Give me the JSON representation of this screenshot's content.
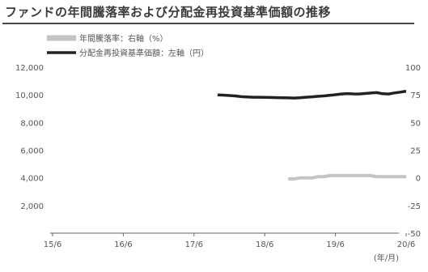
{
  "chart_data": {
    "type": "line",
    "title": "ファンドの年間騰落率および分配金再投資基準価額の推移",
    "x_tick_labels": [
      "15/6",
      "16/6",
      "17/6",
      "18/6",
      "19/6",
      "20/6"
    ],
    "x_unit": "(年/月)",
    "y_left": {
      "ticks": [
        2000,
        4000,
        6000,
        8000,
        10000,
        12000
      ],
      "tick_labels": [
        "2,000",
        "4,000",
        "6,000",
        "8,000",
        "10,000",
        "12,000"
      ],
      "range": [
        0,
        12000
      ]
    },
    "y_right": {
      "ticks": [
        -50,
        -25,
        0,
        25,
        50,
        75,
        100
      ],
      "tick_labels": [
        "-50",
        "-25",
        "0",
        "25",
        "50",
        "75",
        "100"
      ],
      "range": [
        -50,
        100
      ]
    },
    "legend_position": "top-left",
    "grid": false,
    "series": [
      {
        "name": "年間騰落率：右軸（%）",
        "axis": "right",
        "color": "#c4c4c4",
        "points": [
          [
            "2018-10",
            -1
          ],
          [
            "2018-11",
            -1
          ],
          [
            "2018-12",
            0
          ],
          [
            "2019-01",
            0
          ],
          [
            "2019-02",
            0
          ],
          [
            "2019-03",
            1
          ],
          [
            "2019-04",
            1
          ],
          [
            "2019-05",
            2
          ],
          [
            "2019-06",
            2
          ],
          [
            "2019-07",
            2
          ],
          [
            "2019-08",
            2
          ],
          [
            "2019-09",
            2
          ],
          [
            "2019-10",
            2
          ],
          [
            "2019-11",
            2
          ],
          [
            "2019-12",
            2
          ],
          [
            "2020-01",
            1
          ],
          [
            "2020-02",
            1
          ],
          [
            "2020-03",
            1
          ],
          [
            "2020-04",
            1
          ],
          [
            "2020-05",
            1
          ],
          [
            "2020-06",
            1
          ]
        ]
      },
      {
        "name": "分配金再投資基準価額：左軸（円）",
        "axis": "left",
        "color": "#222222",
        "points": [
          [
            "2017-10",
            10000
          ],
          [
            "2017-11",
            9980
          ],
          [
            "2017-12",
            9950
          ],
          [
            "2018-01",
            9920
          ],
          [
            "2018-02",
            9870
          ],
          [
            "2018-03",
            9850
          ],
          [
            "2018-04",
            9830
          ],
          [
            "2018-05",
            9830
          ],
          [
            "2018-06",
            9820
          ],
          [
            "2018-07",
            9810
          ],
          [
            "2018-08",
            9800
          ],
          [
            "2018-09",
            9790
          ],
          [
            "2018-10",
            9780
          ],
          [
            "2018-11",
            9770
          ],
          [
            "2018-12",
            9790
          ],
          [
            "2019-01",
            9830
          ],
          [
            "2019-02",
            9860
          ],
          [
            "2019-03",
            9890
          ],
          [
            "2019-04",
            9920
          ],
          [
            "2019-05",
            9960
          ],
          [
            "2019-06",
            10010
          ],
          [
            "2019-07",
            10060
          ],
          [
            "2019-08",
            10090
          ],
          [
            "2019-09",
            10070
          ],
          [
            "2019-10",
            10060
          ],
          [
            "2019-11",
            10100
          ],
          [
            "2019-12",
            10130
          ],
          [
            "2020-01",
            10160
          ],
          [
            "2020-02",
            10080
          ],
          [
            "2020-03",
            10060
          ],
          [
            "2020-04",
            10140
          ],
          [
            "2020-05",
            10200
          ],
          [
            "2020-06",
            10270
          ]
        ]
      }
    ]
  }
}
